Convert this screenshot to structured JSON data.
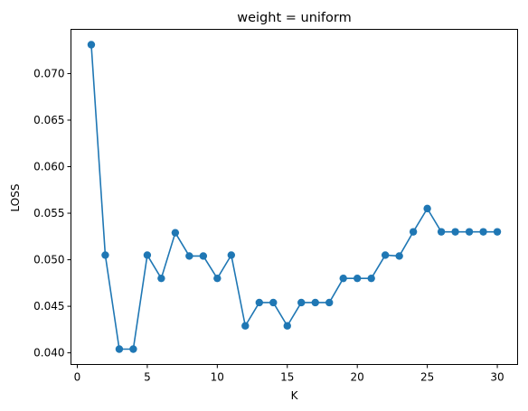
{
  "chart_data": {
    "type": "line",
    "title": "weight = uniform",
    "xlabel": "K",
    "ylabel": "LOSS",
    "xlim": [
      -0.45,
      31.45
    ],
    "ylim": [
      0.03875,
      0.07475
    ],
    "xticks": [
      0,
      5,
      10,
      15,
      20,
      25,
      30
    ],
    "yticks": [
      0.04,
      0.045,
      0.05,
      0.055,
      0.06,
      0.065,
      0.07
    ],
    "xtick_labels": [
      "0",
      "5",
      "10",
      "15",
      "20",
      "25",
      "30"
    ],
    "ytick_labels": [
      "0.040",
      "0.045",
      "0.050",
      "0.055",
      "0.060",
      "0.065",
      "0.070"
    ],
    "grid": false,
    "marker": "o",
    "series": [
      {
        "x": [
          1,
          2,
          3,
          4,
          5,
          6,
          7,
          8,
          9,
          10,
          11,
          12,
          13,
          14,
          15,
          16,
          17,
          18,
          19,
          20,
          21,
          22,
          23,
          24,
          25,
          26,
          27,
          28,
          29,
          30
        ],
        "values": [
          0.0731,
          0.0505,
          0.0404,
          0.0404,
          0.0505,
          0.048,
          0.0529,
          0.0504,
          0.0504,
          0.048,
          0.0505,
          0.0429,
          0.0454,
          0.0454,
          0.0429,
          0.0454,
          0.0454,
          0.0454,
          0.048,
          0.048,
          0.048,
          0.0505,
          0.0504,
          0.053,
          0.0555,
          0.053,
          0.053,
          0.053,
          0.053,
          0.053
        ],
        "color": "#1f77b4"
      }
    ]
  }
}
